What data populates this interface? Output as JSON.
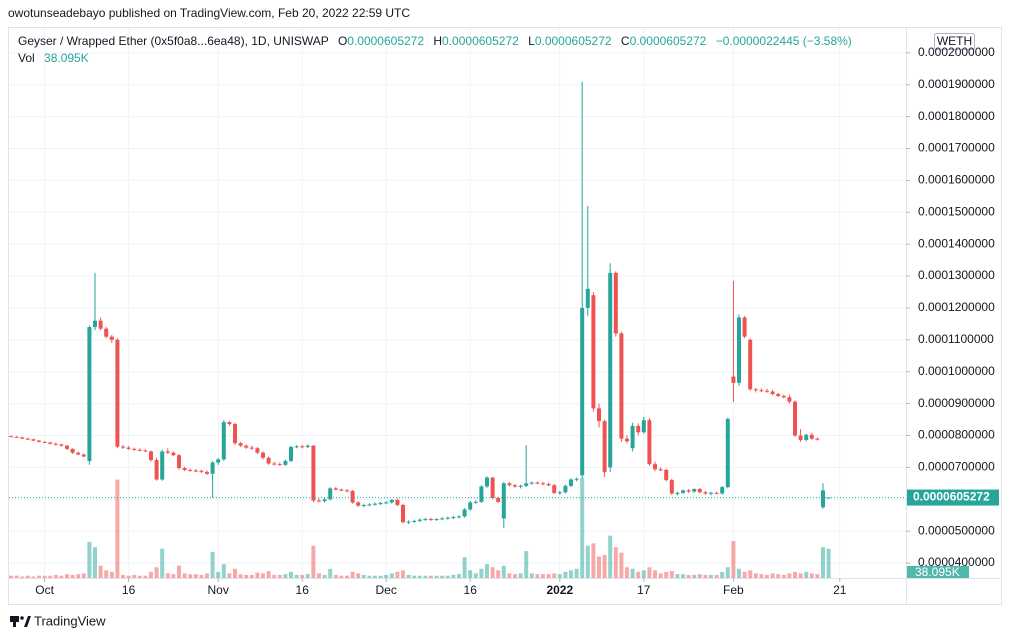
{
  "header": {
    "published": "owotunseadebayo published on TradingView.com, Feb 20, 2022 22:59 UTC"
  },
  "footer": {
    "brand": "TradingView"
  },
  "chart_data": {
    "type": "candlestick",
    "title": "Geyser / Wrapped Ether (0x5f0a8...6ea48), 1D, UNISWAP",
    "currency": "WETH",
    "legend": {
      "o_label": "O",
      "o": "0.0000605272",
      "h_label": "H",
      "h": "0.0000605272",
      "l_label": "L",
      "l": "0.0000605272",
      "c_label": "C",
      "c": "0.0000605272",
      "change": "−0.0000022445 (−3.58%)",
      "vol_label": "Vol",
      "vol": "38.095K"
    },
    "up_color": "#26a69a",
    "down_color": "#ef5350",
    "grid": true,
    "ylim": [
      3.53e-05,
      0.0002078
    ],
    "yticks": [
      {
        "value": 4e-05,
        "label": "0.0000400000"
      },
      {
        "value": 5e-05,
        "label": "0.0000500000"
      },
      {
        "value": 6e-05,
        "label": "0.0000600000"
      },
      {
        "value": 7e-05,
        "label": "0.0000700000"
      },
      {
        "value": 8e-05,
        "label": "0.0000800000"
      },
      {
        "value": 9e-05,
        "label": "0.0000900000"
      },
      {
        "value": 0.0001,
        "label": "0.0001000000"
      },
      {
        "value": 0.00011,
        "label": "0.0001100000"
      },
      {
        "value": 0.00012,
        "label": "0.0001200000"
      },
      {
        "value": 0.00013,
        "label": "0.0001300000"
      },
      {
        "value": 0.00014,
        "label": "0.0001400000"
      },
      {
        "value": 0.00015,
        "label": "0.0001500000"
      },
      {
        "value": 0.00016,
        "label": "0.0001600000"
      },
      {
        "value": 0.00017,
        "label": "0.0001700000"
      },
      {
        "value": 0.00018,
        "label": "0.0001800000"
      },
      {
        "value": 0.00019,
        "label": "0.0001900000"
      },
      {
        "value": 0.0002,
        "label": "0.0002000000"
      }
    ],
    "xticks": [
      {
        "value": 6,
        "label": "Oct"
      },
      {
        "value": 21,
        "label": "16"
      },
      {
        "value": 37,
        "label": "Nov"
      },
      {
        "value": 52,
        "label": "16"
      },
      {
        "value": 67,
        "label": "Dec"
      },
      {
        "value": 82,
        "label": "16"
      },
      {
        "value": 98,
        "label": "2022"
      },
      {
        "value": 113,
        "label": "17"
      },
      {
        "value": 129,
        "label": "Feb"
      },
      {
        "value": 148,
        "label": "21"
      }
    ],
    "last_price": {
      "value": 6.05272e-05,
      "label": "0.0000605272"
    },
    "open": [
      7.98e-05,
      7.96e-05,
      7.94e-05,
      7.9e-05,
      7.88e-05,
      7.84e-05,
      7.8e-05,
      7.78e-05,
      7.74e-05,
      7.72e-05,
      7.68e-05,
      7.58e-05,
      7.46e-05,
      7.4e-05,
      7.2e-05,
      0.000114,
      0.000116,
      0.0001135,
      0.000111,
      0.00011,
      7.65e-05,
      7.62e-05,
      7.58e-05,
      7.55e-05,
      7.53e-05,
      7.5e-05,
      7.23e-05,
      6.62e-05,
      7.5e-05,
      7.46e-05,
      7.38e-05,
      6.98e-05,
      6.92e-05,
      6.9e-05,
      6.89e-05,
      6.86e-05,
      6.8e-05,
      7.15e-05,
      7.25e-05,
      8.42e-05,
      8.36e-05,
      7.76e-05,
      7.68e-05,
      7.62e-05,
      7.6e-05,
      7.46e-05,
      7.3e-05,
      7.12e-05,
      7.1e-05,
      7.08e-05,
      7.2e-05,
      7.64e-05,
      7.66e-05,
      7.64e-05,
      7.68e-05,
      5.96e-05,
      5.94e-05,
      6e-05,
      6.34e-05,
      6.3e-05,
      6.28e-05,
      6.26e-05,
      5.9e-05,
      5.8e-05,
      5.82e-05,
      5.84e-05,
      5.86e-05,
      5.88e-05,
      5.9e-05,
      5.98e-05,
      5.82e-05,
      5.28e-05,
      5.3e-05,
      5.32e-05,
      5.36e-05,
      5.38e-05,
      5.36e-05,
      5.38e-05,
      5.4e-05,
      5.42e-05,
      5.44e-05,
      5.46e-05,
      5.68e-05,
      5.9e-05,
      5.92e-05,
      6.4e-05,
      6.68e-05,
      6.04e-05,
      5.4e-05,
      6.5e-05,
      6.44e-05,
      6.4e-05,
      6.42e-05,
      6.5e-05,
      6.52e-05,
      6.5e-05,
      6.48e-05,
      6.44e-05,
      6.2e-05,
      6.22e-05,
      6.42e-05,
      6.62e-05,
      6.75e-05,
      0.00012,
      0.000124,
      8.85e-05,
      8.45e-05,
      7e-05,
      0.000131,
      0.000112,
      7.9e-05,
      7.6e-05,
      8.3e-05,
      8.1e-05,
      8.48e-05,
      7.1e-05,
      6.94e-05,
      6.92e-05,
      6.6e-05,
      6.18e-05,
      6.2e-05,
      6.28e-05,
      6.24e-05,
      6.32e-05,
      6.22e-05,
      6.18e-05,
      6.2e-05,
      6.18e-05,
      6.38e-05,
      9.85e-05,
      9.65e-05,
      0.000117,
      0.00011,
      9.45e-05,
      9.42e-05,
      9.4e-05,
      9.38e-05,
      9.3e-05,
      9.24e-05,
      9.2e-05,
      9.06e-05,
      8e-05,
      7.86e-05,
      8.02e-05,
      7.9e-05,
      5.75e-05,
      6.05272e-05
    ],
    "high": [
      8e-05,
      7.98e-05,
      7.96e-05,
      7.93e-05,
      7.9e-05,
      7.86e-05,
      7.82e-05,
      7.8e-05,
      7.78e-05,
      7.74e-05,
      7.7e-05,
      7.6e-05,
      7.5e-05,
      7.44e-05,
      0.0001145,
      0.000131,
      0.000117,
      0.000114,
      0.0001115,
      0.0001105,
      7.7e-05,
      7.66e-05,
      7.62e-05,
      7.6e-05,
      7.56e-05,
      7.53e-05,
      7.3e-05,
      7.55e-05,
      7.6e-05,
      7.5e-05,
      7.42e-05,
      7.02e-05,
      6.96e-05,
      6.95e-05,
      6.93e-05,
      6.9e-05,
      7.2e-05,
      7.3e-05,
      8.48e-05,
      8.46e-05,
      8.4e-05,
      7.8e-05,
      7.72e-05,
      7.68e-05,
      7.64e-05,
      7.5e-05,
      7.34e-05,
      7.18e-05,
      7.16e-05,
      7.24e-05,
      7.68e-05,
      7.7e-05,
      7.7e-05,
      7.72e-05,
      7.7e-05,
      6.02e-05,
      6.05e-05,
      6.38e-05,
      6.38e-05,
      6.34e-05,
      6.32e-05,
      6.29e-05,
      5.94e-05,
      5.86e-05,
      5.88e-05,
      5.9e-05,
      5.92e-05,
      5.94e-05,
      6e-05,
      6.02e-05,
      5.86e-05,
      5.34e-05,
      5.36e-05,
      5.4e-05,
      5.42e-05,
      5.42e-05,
      5.4e-05,
      5.44e-05,
      5.46e-05,
      5.48e-05,
      5.5e-05,
      5.72e-05,
      5.94e-05,
      5.96e-05,
      6.44e-05,
      6.72e-05,
      6.7e-05,
      6.08e-05,
      6.54e-05,
      6.54e-05,
      6.48e-05,
      6.46e-05,
      7.7e-05,
      6.56e-05,
      6.56e-05,
      6.54e-05,
      6.52e-05,
      6.48e-05,
      6.26e-05,
      6.46e-05,
      6.66e-05,
      6.68e-05,
      0.000191,
      0.000152,
      0.000125,
      9e-05,
      8.5e-05,
      0.000134,
      0.0001315,
      0.0001125,
      8e-05,
      8.4e-05,
      8.38e-05,
      8.58e-05,
      8.55e-05,
      7.18e-05,
      7e-05,
      6.96e-05,
      6.64e-05,
      6.24e-05,
      6.3e-05,
      6.32e-05,
      6.34e-05,
      6.36e-05,
      6.26e-05,
      6.24e-05,
      6.24e-05,
      6.42e-05,
      8.56e-05,
      0.0001285,
      0.000118,
      0.0001175,
      0.0001105,
      9.5e-05,
      9.48e-05,
      9.46e-05,
      9.44e-05,
      9.34e-05,
      9.28e-05,
      9.28e-05,
      9.1e-05,
      8.2e-05,
      8.06e-05,
      8.08e-05,
      7.94e-05,
      6.5e-05,
      6.05272e-05
    ],
    "low": [
      7.95e-05,
      7.92e-05,
      7.89e-05,
      7.86e-05,
      7.82e-05,
      7.78e-05,
      7.76e-05,
      7.72e-05,
      7.69e-05,
      7.65e-05,
      7.55e-05,
      7.42e-05,
      7.38e-05,
      7.32e-05,
      7.08e-05,
      0.000113,
      0.000113,
      0.0001105,
      0.000109,
      7.6e-05,
      7.58e-05,
      7.55e-05,
      7.52e-05,
      7.5e-05,
      7.48e-05,
      7.18e-05,
      6.58e-05,
      6.58e-05,
      7.42e-05,
      7.35e-05,
      6.92e-05,
      6.88e-05,
      6.86e-05,
      6.85e-05,
      6.82e-05,
      6.76e-05,
      6.05e-05,
      7.08e-05,
      7.2e-05,
      8.3e-05,
      7.7e-05,
      7.64e-05,
      7.58e-05,
      7.55e-05,
      7.42e-05,
      7.25e-05,
      7.08e-05,
      7.06e-05,
      7.05e-05,
      7.04e-05,
      7.16e-05,
      7.6e-05,
      7.6e-05,
      7.6e-05,
      5.9e-05,
      5.9e-05,
      5.9e-05,
      5.96e-05,
      6.28e-05,
      6.26e-05,
      6.22e-05,
      5.86e-05,
      5.76e-05,
      5.74e-05,
      5.78e-05,
      5.8e-05,
      5.82e-05,
      5.84e-05,
      5.86e-05,
      5.78e-05,
      5.24e-05,
      5.22e-05,
      5.26e-05,
      5.28e-05,
      5.32e-05,
      5.32e-05,
      5.32e-05,
      5.34e-05,
      5.36e-05,
      5.38e-05,
      5.4e-05,
      5.42e-05,
      5.64e-05,
      5.86e-05,
      5.88e-05,
      6.36e-05,
      6e-05,
      5.88e-05,
      5.1e-05,
      6.4e-05,
      6.36e-05,
      6.34e-05,
      6.38e-05,
      6.46e-05,
      6.48e-05,
      6.44e-05,
      6.4e-05,
      6.16e-05,
      6.14e-05,
      6.18e-05,
      6.38e-05,
      6.56e-05,
      6.65e-05,
      0.0001175,
      8.75e-05,
      8.25e-05,
      6.7e-05,
      6.85e-05,
      0.000111,
      7.8e-05,
      7.75e-05,
      7.5e-05,
      8e-05,
      8.05e-05,
      7.05e-05,
      6.88e-05,
      6.88e-05,
      6.56e-05,
      6.14e-05,
      6.12e-05,
      6.16e-05,
      6.2e-05,
      6.2e-05,
      6.18e-05,
      6.14e-05,
      6.12e-05,
      6.16e-05,
      6.14e-05,
      6.34e-05,
      9.05e-05,
      9.55e-05,
      0.0001105,
      9.4e-05,
      9.35e-05,
      9.36e-05,
      9.34e-05,
      9.26e-05,
      9.2e-05,
      9.16e-05,
      9e-05,
      7.96e-05,
      7.8e-05,
      7.82e-05,
      7.86e-05,
      7.84e-05,
      5.7e-05,
      6.05272e-05
    ],
    "close": [
      7.96e-05,
      7.94e-05,
      7.9e-05,
      7.88e-05,
      7.84e-05,
      7.8e-05,
      7.78e-05,
      7.74e-05,
      7.72e-05,
      7.68e-05,
      7.58e-05,
      7.46e-05,
      7.4e-05,
      7.34e-05,
      0.000114,
      0.000116,
      0.0001135,
      0.000111,
      0.00011,
      7.65e-05,
      7.62e-05,
      7.58e-05,
      7.55e-05,
      7.53e-05,
      7.5e-05,
      7.23e-05,
      6.62e-05,
      7.5e-05,
      7.46e-05,
      7.38e-05,
      6.98e-05,
      6.92e-05,
      6.9e-05,
      6.89e-05,
      6.86e-05,
      6.8e-05,
      7.15e-05,
      7.25e-05,
      8.42e-05,
      8.36e-05,
      7.76e-05,
      7.68e-05,
      7.62e-05,
      7.6e-05,
      7.46e-05,
      7.3e-05,
      7.12e-05,
      7.1e-05,
      7.08e-05,
      7.2e-05,
      7.64e-05,
      7.66e-05,
      7.64e-05,
      7.68e-05,
      5.96e-05,
      5.94e-05,
      6e-05,
      6.34e-05,
      6.3e-05,
      6.28e-05,
      6.26e-05,
      5.9e-05,
      5.8e-05,
      5.82e-05,
      5.84e-05,
      5.86e-05,
      5.88e-05,
      5.9e-05,
      5.98e-05,
      5.82e-05,
      5.28e-05,
      5.3e-05,
      5.32e-05,
      5.36e-05,
      5.38e-05,
      5.36e-05,
      5.38e-05,
      5.4e-05,
      5.42e-05,
      5.44e-05,
      5.46e-05,
      5.68e-05,
      5.9e-05,
      5.92e-05,
      6.4e-05,
      6.68e-05,
      6.04e-05,
      5.92e-05,
      6.5e-05,
      6.44e-05,
      6.4e-05,
      6.42e-05,
      6.5e-05,
      6.52e-05,
      6.5e-05,
      6.48e-05,
      6.44e-05,
      6.2e-05,
      6.22e-05,
      6.42e-05,
      6.62e-05,
      6.64e-05,
      0.00012,
      0.000126,
      8.85e-05,
      8.45e-05,
      6.85e-05,
      0.000131,
      0.000112,
      7.9e-05,
      7.82e-05,
      8.3e-05,
      8.1e-05,
      8.48e-05,
      7.1e-05,
      6.94e-05,
      6.92e-05,
      6.6e-05,
      6.18e-05,
      6.2e-05,
      6.28e-05,
      6.24e-05,
      6.32e-05,
      6.22e-05,
      6.18e-05,
      6.2e-05,
      6.18e-05,
      6.38e-05,
      8.52e-05,
      9.65e-05,
      0.000117,
      0.000111,
      9.45e-05,
      9.42e-05,
      9.4e-05,
      9.38e-05,
      9.3e-05,
      9.24e-05,
      9.2e-05,
      9.06e-05,
      8e-05,
      7.86e-05,
      8.02e-05,
      7.9e-05,
      7.88e-05,
      6.27717e-05,
      6.05272e-05
    ],
    "volume": [
      3000,
      3000,
      2000,
      3000,
      2000,
      3000,
      3000,
      3000,
      4000,
      3000,
      5000,
      4000,
      5000,
      6000,
      47000,
      40000,
      16000,
      10000,
      8000,
      128000,
      4000,
      3000,
      4000,
      3000,
      3000,
      8000,
      14000,
      38000,
      6000,
      5000,
      16000,
      6000,
      5000,
      5000,
      4000,
      6000,
      34000,
      8000,
      18000,
      6000,
      12000,
      5000,
      4000,
      4000,
      7000,
      6000,
      9000,
      4000,
      4000,
      5000,
      8000,
      4000,
      4000,
      5000,
      42000,
      6000,
      4000,
      12000,
      4000,
      3000,
      3000,
      8000,
      6000,
      4000,
      3000,
      3000,
      3000,
      4000,
      6000,
      8000,
      10000,
      4000,
      3000,
      3000,
      3000,
      3000,
      3000,
      3000,
      3000,
      4000,
      5000,
      27000,
      10000,
      6000,
      12000,
      18000,
      14000,
      10000,
      16000,
      6000,
      5000,
      6000,
      35000,
      6000,
      5000,
      5000,
      5000,
      6000,
      5000,
      8000,
      10000,
      12000,
      130000,
      42000,
      45000,
      28000,
      30000,
      55000,
      40000,
      33000,
      14000,
      12000,
      8000,
      10000,
      14000,
      10000,
      6000,
      8000,
      9000,
      5000,
      5000,
      4000,
      4000,
      5000,
      4000,
      4000,
      4000,
      8000,
      14000,
      48000,
      12000,
      8000,
      10000,
      6000,
      5000,
      4000,
      6000,
      5000,
      4000,
      6000,
      8000,
      6000,
      8000,
      6000,
      5000,
      40000,
      38095
    ]
  }
}
